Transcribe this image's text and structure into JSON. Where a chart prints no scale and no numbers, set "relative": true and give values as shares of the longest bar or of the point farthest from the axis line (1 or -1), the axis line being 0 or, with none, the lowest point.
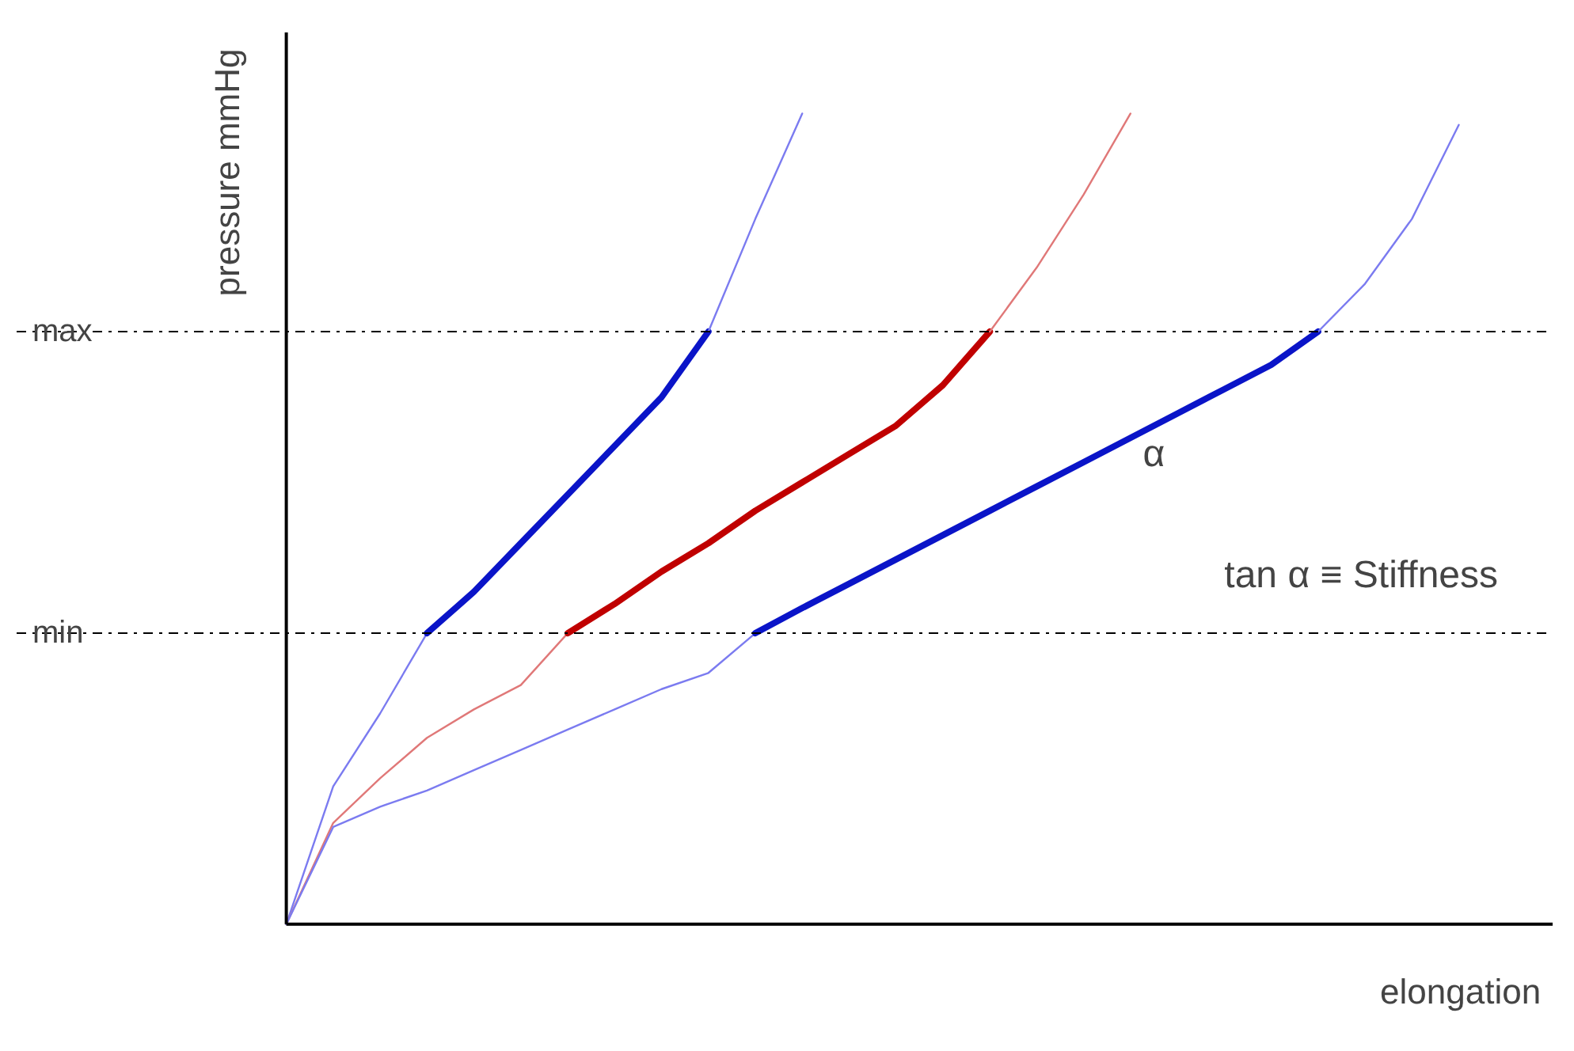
{
  "chart_data": {
    "type": "line",
    "relative": true,
    "xlabel": "elongation",
    "ylabel": "pressure mmHg",
    "grid": false,
    "line_style": "solid",
    "marker": "none",
    "categories": [
      null,
      null,
      null,
      null,
      null,
      null,
      null,
      null,
      null,
      null,
      null,
      null,
      null,
      null,
      null,
      null,
      null,
      null,
      null,
      null,
      null,
      null,
      null,
      null,
      null,
      null
    ],
    "series": [
      {
        "color": "#7b7bf0",
        "values": [
          0,
          0.17,
          0.26,
          0.359,
          null,
          null,
          null,
          null,
          null,
          null,
          null,
          null,
          null,
          null,
          null,
          null,
          null,
          null,
          null,
          null,
          null,
          null,
          null,
          null,
          null,
          null
        ]
      },
      {
        "color": "#0a14c8",
        "values": [
          null,
          null,
          null,
          0.359,
          0.41,
          0.47,
          0.53,
          0.59,
          0.65,
          0.731,
          null,
          null,
          null,
          null,
          null,
          null,
          null,
          null,
          null,
          null,
          null,
          null,
          null,
          null,
          null,
          null
        ]
      },
      {
        "color": "#7b7bf0",
        "values": [
          null,
          null,
          null,
          null,
          null,
          null,
          null,
          null,
          null,
          0.731,
          0.87,
          1.0,
          null,
          null,
          null,
          null,
          null,
          null,
          null,
          null,
          null,
          null,
          null,
          null,
          null,
          null
        ]
      },
      {
        "color": "#e07878",
        "values": [
          0,
          0.125,
          0.18,
          0.23,
          0.265,
          0.295,
          0.359,
          null,
          null,
          null,
          null,
          null,
          null,
          null,
          null,
          null,
          null,
          null,
          null,
          null,
          null,
          null,
          null,
          null,
          null,
          null
        ]
      },
      {
        "color": "#c00000",
        "values": [
          null,
          null,
          null,
          null,
          null,
          null,
          0.359,
          0.395,
          0.435,
          0.47,
          0.51,
          0.545,
          0.58,
          0.615,
          0.665,
          0.731,
          null,
          null,
          null,
          null,
          null,
          null,
          null,
          null,
          null,
          null
        ]
      },
      {
        "color": "#e07878",
        "values": [
          null,
          null,
          null,
          null,
          null,
          null,
          null,
          null,
          null,
          null,
          null,
          null,
          null,
          null,
          null,
          0.731,
          0.81,
          0.9,
          1.0,
          null,
          null,
          null,
          null,
          null,
          null,
          null
        ]
      },
      {
        "color": "#7b7bf0",
        "values": [
          0,
          0.12,
          0.145,
          0.165,
          0.19,
          0.215,
          0.24,
          0.265,
          0.29,
          0.31,
          0.359,
          null,
          null,
          null,
          null,
          null,
          null,
          null,
          null,
          null,
          null,
          null,
          null,
          null,
          null,
          null
        ]
      },
      {
        "color": "#0a14c8",
        "values": [
          null,
          null,
          null,
          null,
          null,
          null,
          null,
          null,
          null,
          null,
          0.359,
          0.39,
          0.42,
          0.45,
          0.48,
          0.51,
          0.54,
          0.57,
          0.6,
          0.63,
          0.66,
          0.69,
          0.731,
          null,
          null,
          null
        ]
      },
      {
        "color": "#7b7bf0",
        "values": [
          null,
          null,
          null,
          null,
          null,
          null,
          null,
          null,
          null,
          null,
          null,
          null,
          null,
          null,
          null,
          null,
          null,
          null,
          null,
          null,
          null,
          null,
          0.731,
          0.79,
          0.87,
          0.986
        ]
      }
    ],
    "ref_lines": [
      {
        "axis": "y",
        "value": 0.731,
        "label": "max",
        "color": "#000000",
        "line_style": "dashdot"
      },
      {
        "axis": "y",
        "value": 0.359,
        "label": "min",
        "color": "#000000",
        "line_style": "dashdot"
      }
    ],
    "annotations": [
      "α",
      "tan α ≡ Stiffness"
    ]
  }
}
